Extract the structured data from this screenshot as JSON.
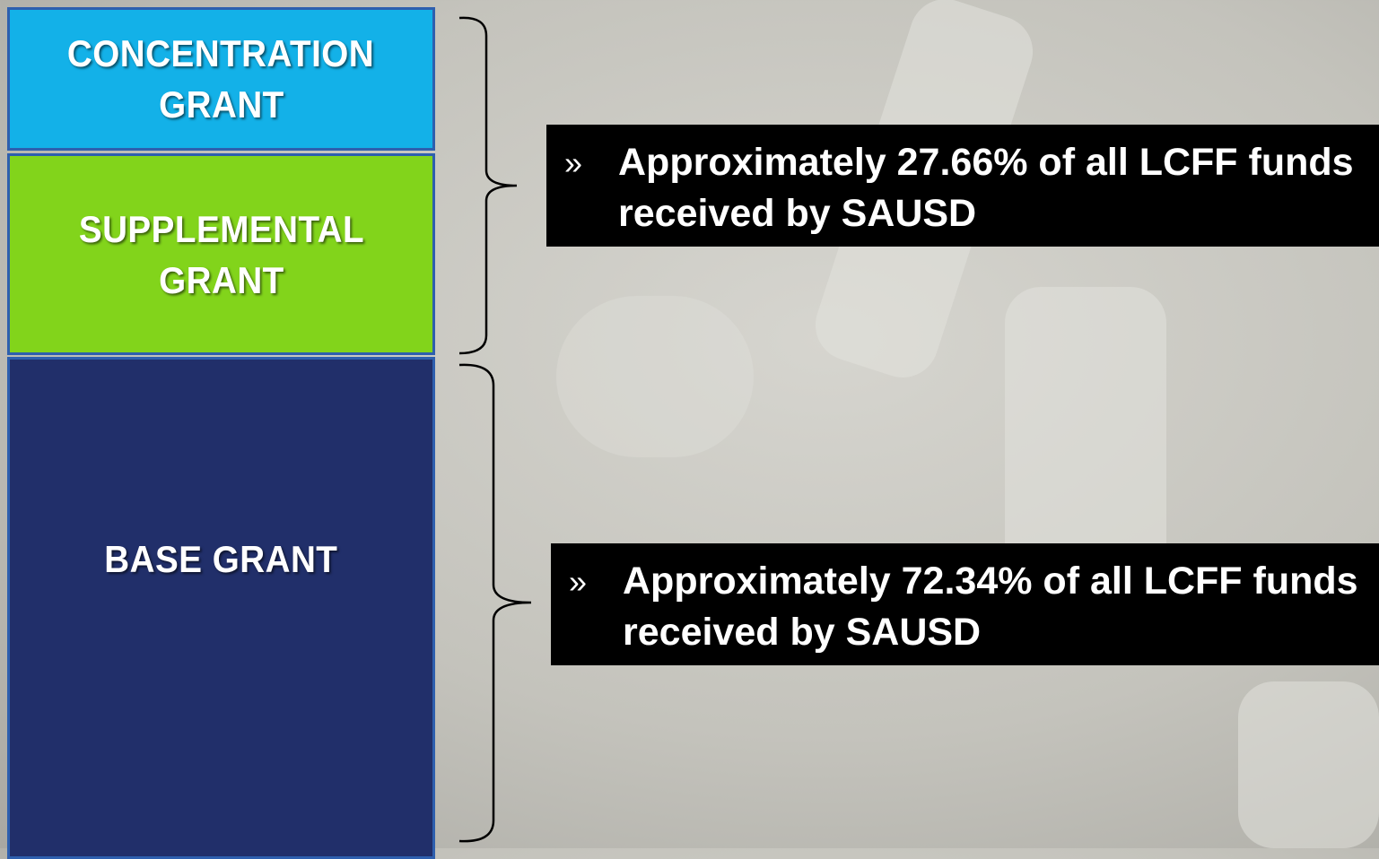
{
  "blocks": [
    {
      "lines": [
        "CONCENTRATION",
        "GRANT"
      ]
    },
    {
      "lines": [
        "SUPPLEMENTAL",
        "GRANT"
      ]
    },
    {
      "lines": [
        "BASE GRANT"
      ]
    }
  ],
  "callouts": [
    {
      "bullet": "»",
      "lines": [
        "Approximately 27.66% of all LCFF funds",
        "received by SAUSD"
      ]
    },
    {
      "bullet": "»",
      "lines": [
        "Approximately 72.34% of all LCFF funds",
        "received by SAUSD"
      ]
    }
  ]
}
